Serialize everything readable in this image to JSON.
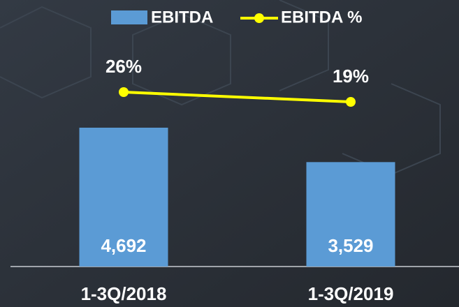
{
  "chart_data": {
    "type": "bar_line",
    "categories": [
      "1-3Q/2018",
      "1-3Q/2019"
    ],
    "series": [
      {
        "name": "EBITDA",
        "color": "#5b9bd5",
        "type": "bar",
        "values": [
          4692,
          3529
        ],
        "value_labels": [
          "4,692",
          "3,529"
        ]
      },
      {
        "name": "EBITDA %",
        "color": "#ffff00",
        "type": "line",
        "axis": "y2",
        "values": [
          26,
          19
        ],
        "value_labels": [
          "26%",
          "19%"
        ]
      }
    ],
    "legend": "top"
  }
}
